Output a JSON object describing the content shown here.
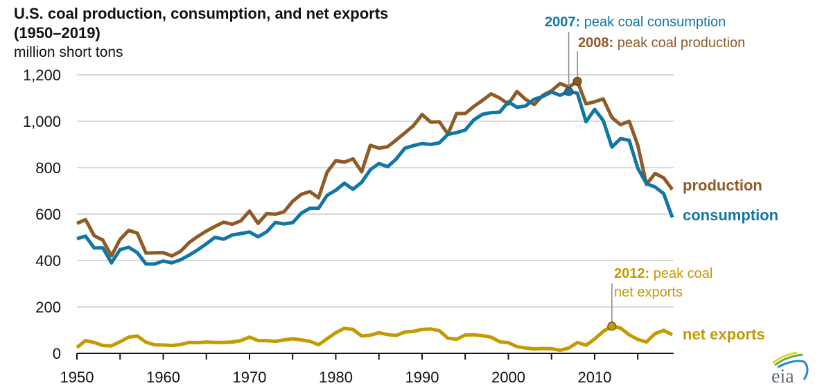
{
  "chart_data": {
    "type": "line",
    "title": "U.S. coal production, consumption, and net exports",
    "title_line2": "(1950–2019)",
    "ylabel": "million short tons",
    "xlabel": "",
    "ylim": [
      0,
      1200
    ],
    "xlim": [
      1950,
      2019
    ],
    "grid": true,
    "yticks": [
      0,
      200,
      400,
      600,
      800,
      1000,
      1200
    ],
    "ytick_labels": [
      "0",
      "200",
      "400",
      "600",
      "800",
      "1,000",
      "1,200"
    ],
    "xticks": [
      1950,
      1955,
      1960,
      1965,
      1970,
      1975,
      1980,
      1985,
      1990,
      1995,
      2000,
      2005,
      2010,
      2015
    ],
    "xtick_labels": [
      "1950",
      "1960",
      "1970",
      "1980",
      "1990",
      "2000",
      "2010"
    ],
    "x": [
      1950,
      1951,
      1952,
      1953,
      1954,
      1955,
      1956,
      1957,
      1958,
      1959,
      1960,
      1961,
      1962,
      1963,
      1964,
      1965,
      1966,
      1967,
      1968,
      1969,
      1970,
      1971,
      1972,
      1973,
      1974,
      1975,
      1976,
      1977,
      1978,
      1979,
      1980,
      1981,
      1982,
      1983,
      1984,
      1985,
      1986,
      1987,
      1988,
      1989,
      1990,
      1991,
      1992,
      1993,
      1994,
      1995,
      1996,
      1997,
      1998,
      1999,
      2000,
      2001,
      2002,
      2003,
      2004,
      2005,
      2006,
      2007,
      2008,
      2009,
      2010,
      2011,
      2012,
      2013,
      2014,
      2015,
      2016,
      2017,
      2018,
      2019
    ],
    "series": [
      {
        "name": "production",
        "color": "#8f5a26",
        "values": [
          560,
          576,
          507,
          488,
          420,
          491,
          530,
          518,
          432,
          433,
          434,
          420,
          439,
          477,
          504,
          527,
          547,
          565,
          556,
          571,
          613,
          560,
          602,
          599,
          610,
          655,
          685,
          697,
          670,
          781,
          830,
          824,
          838,
          782,
          896,
          884,
          890,
          919,
          950,
          981,
          1029,
          996,
          998,
          945,
          1033,
          1033,
          1064,
          1090,
          1118,
          1100,
          1074,
          1128,
          1094,
          1072,
          1112,
          1131,
          1163,
          1147,
          1172,
          1075,
          1084,
          1096,
          1016,
          985,
          1000,
          897,
          728,
          775,
          756,
          706
        ]
      },
      {
        "name": "consumption",
        "color": "#0f76a5",
        "values": [
          494,
          505,
          454,
          455,
          390,
          447,
          457,
          434,
          385,
          385,
          398,
          390,
          403,
          423,
          446,
          472,
          500,
          492,
          510,
          516,
          523,
          502,
          524,
          564,
          558,
          563,
          604,
          625,
          625,
          681,
          703,
          733,
          707,
          737,
          791,
          818,
          804,
          837,
          884,
          895,
          904,
          900,
          907,
          944,
          951,
          962,
          1006,
          1030,
          1037,
          1039,
          1084,
          1060,
          1066,
          1095,
          1107,
          1126,
          1112,
          1128,
          1121,
          998,
          1051,
          1003,
          889,
          925,
          918,
          798,
          731,
          717,
          688,
          586
        ]
      },
      {
        "name": "net exports",
        "color": "#c49a00",
        "values": [
          25,
          55,
          47,
          34,
          32,
          50,
          70,
          75,
          48,
          37,
          36,
          34,
          38,
          47,
          46,
          49,
          47,
          47,
          49,
          55,
          70,
          55,
          55,
          52,
          58,
          63,
          58,
          52,
          37,
          63,
          89,
          108,
          103,
          75,
          78,
          89,
          81,
          77,
          92,
          95,
          103,
          105,
          98,
          65,
          61,
          79,
          80,
          76,
          70,
          50,
          46,
          29,
          23,
          19,
          21,
          20,
          13,
          23,
          47,
          35,
          62,
          95,
          117,
          109,
          80,
          60,
          49,
          85,
          99,
          80
        ]
      }
    ],
    "series_labels": {
      "production": "production",
      "consumption": "consumption",
      "net_exports": "net exports"
    },
    "annotations": [
      {
        "year": 2007,
        "series": "consumption",
        "value": 1128,
        "bold": "2007:",
        "text": " peak coal consumption",
        "color": "#0f76a5"
      },
      {
        "year": 2008,
        "series": "production",
        "value": 1172,
        "bold": "2008:",
        "text": " peak coal production",
        "color": "#8f5a26"
      },
      {
        "year": 2012,
        "series": "net exports",
        "value": 117,
        "bold": "2012:",
        "text": " peak coal",
        "text_line2": "net exports",
        "color": "#c49a00"
      }
    ],
    "source_logo": "eia"
  }
}
